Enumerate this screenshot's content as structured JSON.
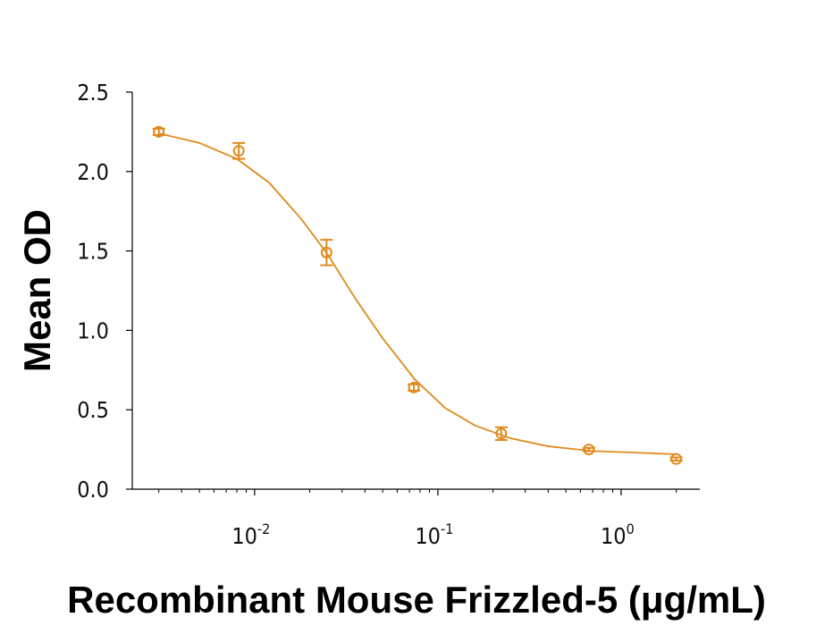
{
  "chart_data": {
    "type": "scatter",
    "xlabel": "Recombinant Mouse Frizzled-5 (μg/mL)",
    "ylabel": "Mean OD",
    "xscale": "log",
    "color": "#e08a1e",
    "x": [
      0.003,
      0.0082,
      0.0247,
      0.074,
      0.222,
      0.667,
      2
    ],
    "values": [
      2.25,
      2.13,
      1.49,
      0.64,
      0.35,
      0.25,
      0.19
    ],
    "errors": [
      0.02,
      0.05,
      0.08,
      0.02,
      0.04,
      0.01,
      0.01
    ],
    "fit": {
      "x": [
        0.003,
        0.005,
        0.008,
        0.012,
        0.018,
        0.025,
        0.035,
        0.05,
        0.075,
        0.11,
        0.16,
        0.25,
        0.4,
        0.7,
        1.2,
        2
      ],
      "values": [
        2.24,
        2.18,
        2.08,
        1.93,
        1.7,
        1.48,
        1.21,
        0.95,
        0.69,
        0.51,
        0.4,
        0.32,
        0.27,
        0.24,
        0.23,
        0.22
      ]
    },
    "xlim": [
      0.00215,
      2.69
    ],
    "ylim": [
      0,
      2.5
    ],
    "xticks": [
      {
        "value": 0.01,
        "label": "10",
        "exponent": "-2"
      },
      {
        "value": 0.1,
        "label": "10",
        "exponent": "-1"
      },
      {
        "value": 1,
        "label": "10",
        "exponent": "0"
      }
    ],
    "xminorticks": [
      0.003,
      0.004,
      0.005,
      0.006,
      0.007,
      0.008,
      0.009,
      0.02,
      0.03,
      0.04,
      0.05,
      0.06,
      0.07,
      0.08,
      0.09,
      0.2,
      0.3,
      0.4,
      0.5,
      0.6,
      0.7,
      0.8,
      0.9,
      2
    ],
    "yticks": [
      {
        "value": 0,
        "label": "0.0"
      },
      0.5,
      {
        "value": 1,
        "label": "1.0"
      },
      1.5,
      {
        "value": 2,
        "label": "2.0"
      },
      2.5
    ]
  }
}
